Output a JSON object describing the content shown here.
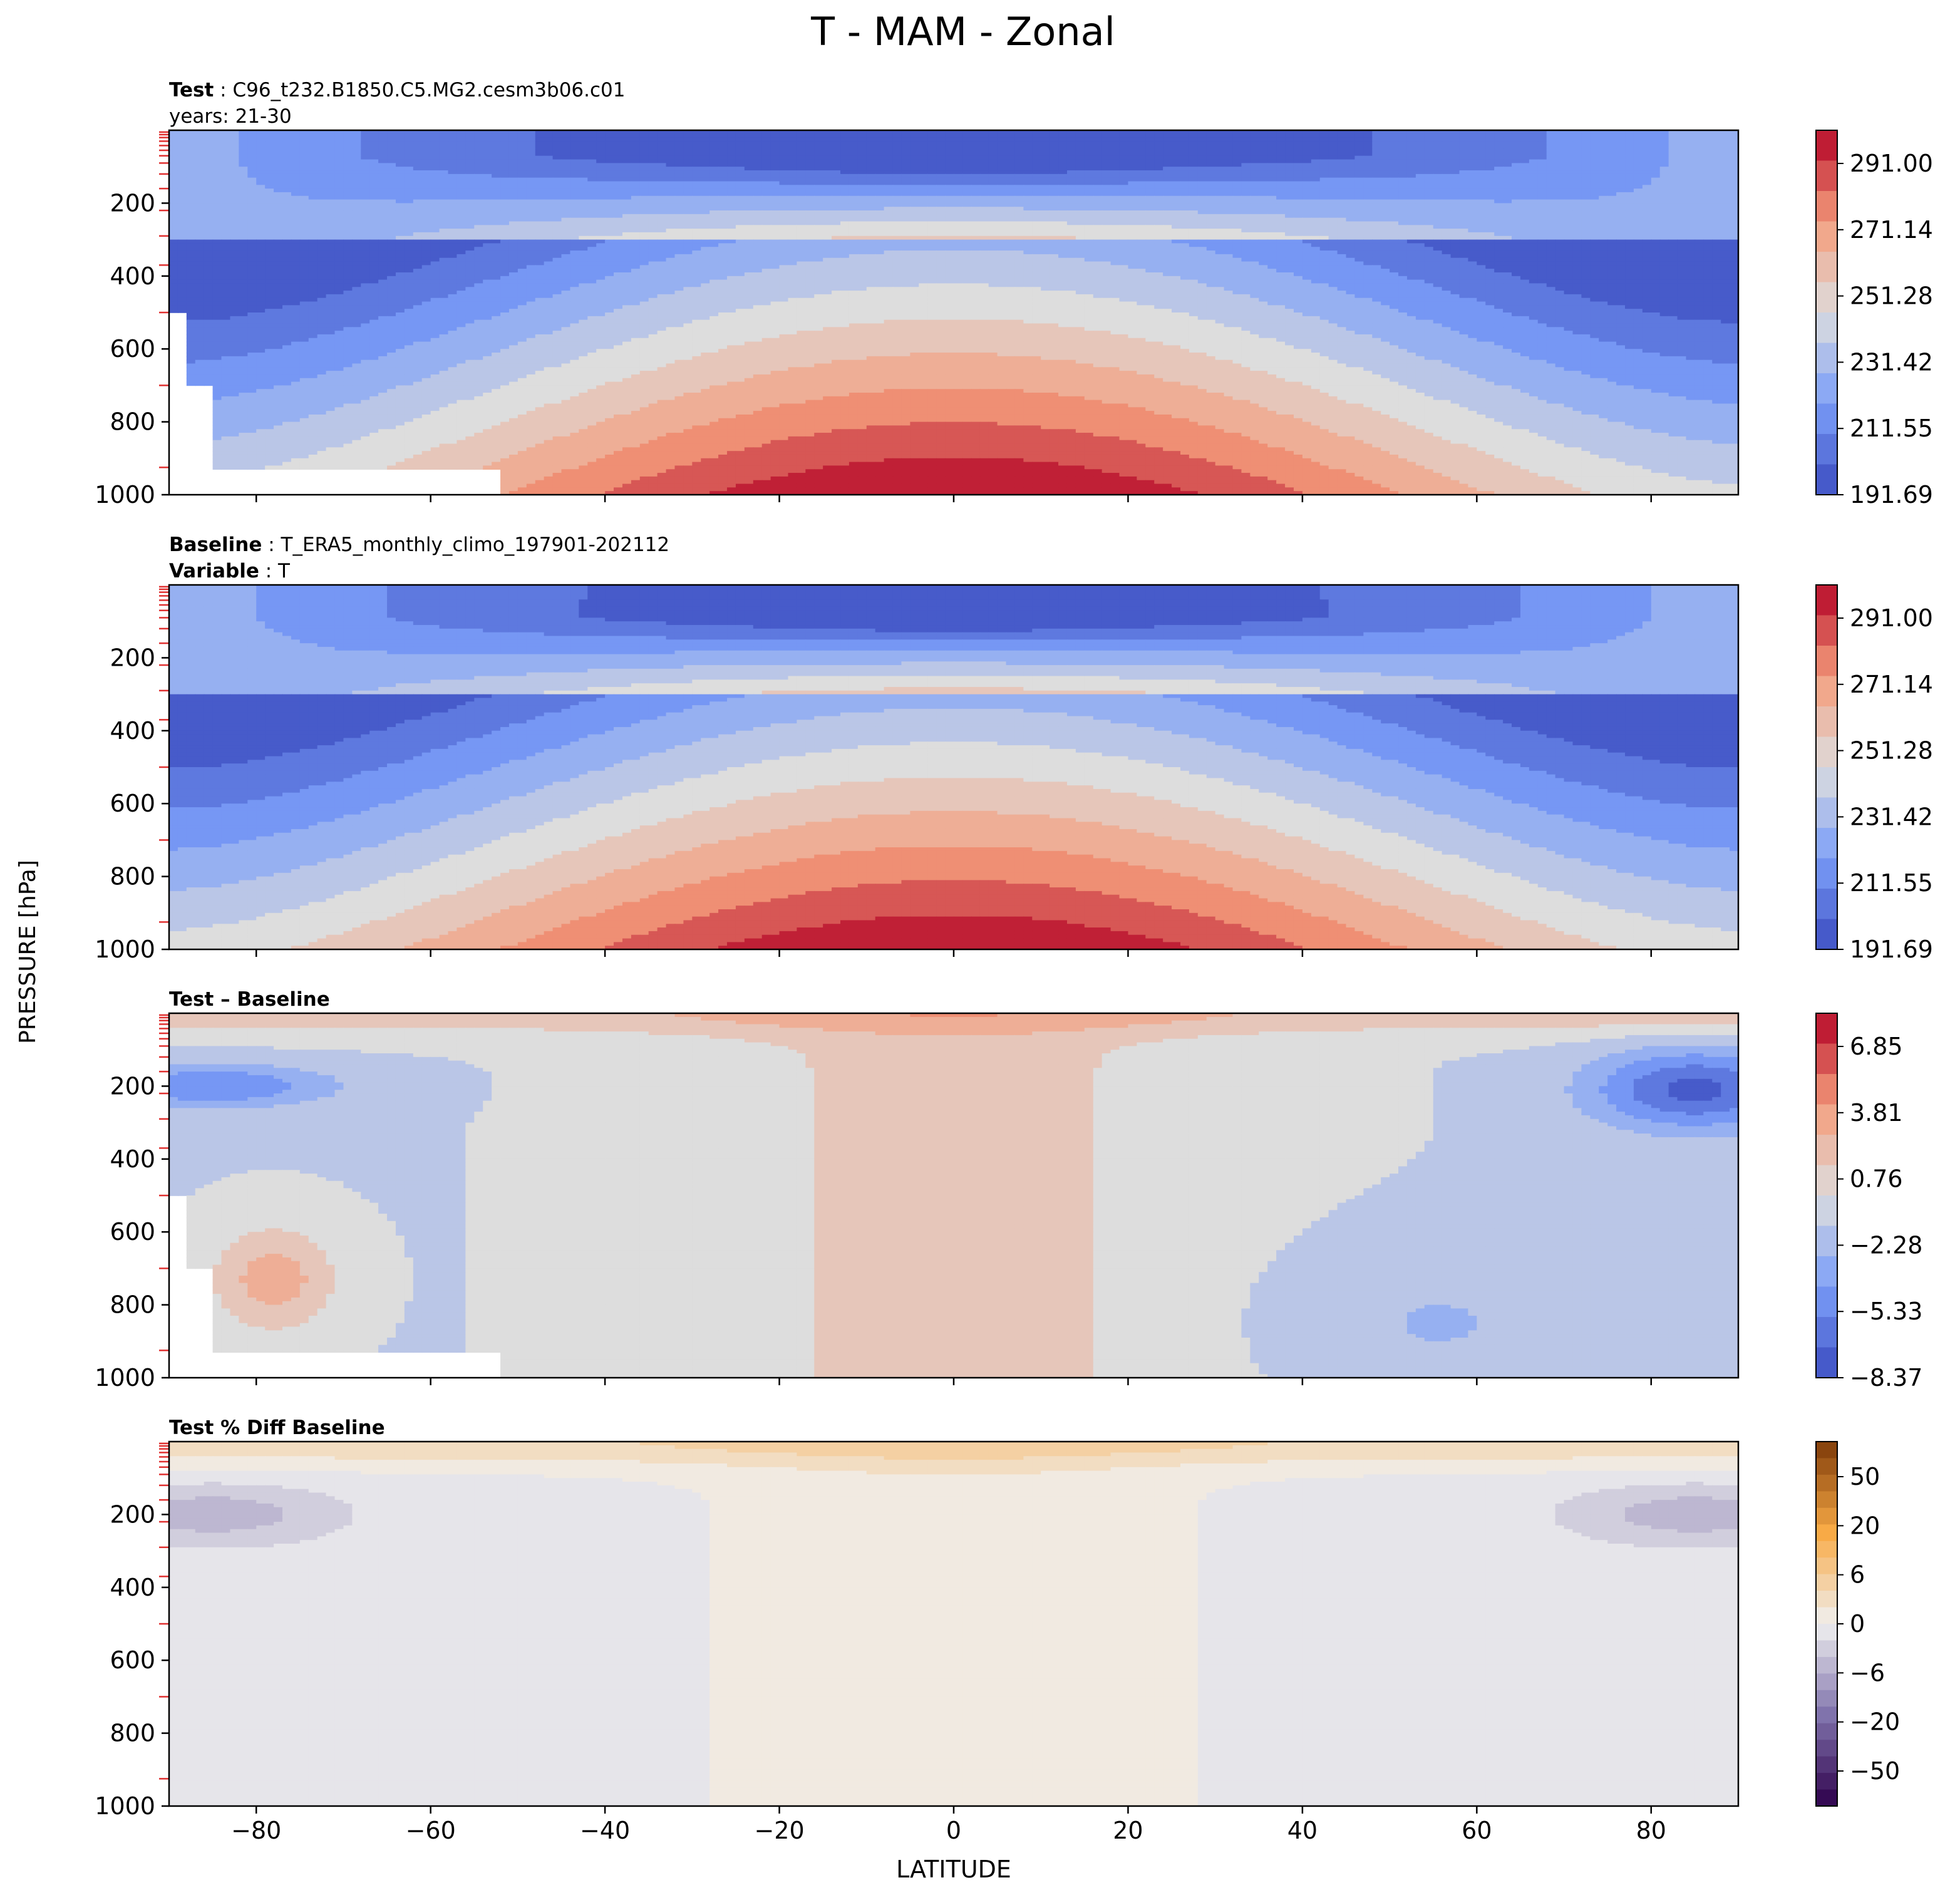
{
  "figure": {
    "title": "T - MAM - Zonal",
    "ylabel": "PRESSURE [hPa]",
    "xlabel": "LATITUDE"
  },
  "chart_data": [
    {
      "type": "heatmap",
      "panel": "test",
      "header_lines": [
        {
          "bold": "Test",
          "text": ": C96_t232.B1850.C5.MG2.cesm3b06.c01"
        },
        {
          "bold": "",
          "text": "years: 21-30"
        }
      ],
      "x": {
        "range": [
          -90,
          90
        ],
        "ticks": [
          -80,
          -60,
          -40,
          -20,
          0,
          20,
          40,
          60,
          80
        ],
        "tick_labels_shown": false
      },
      "y": {
        "range": [
          0,
          1000
        ],
        "inverted": true,
        "ticks": [
          200,
          400,
          600,
          800,
          1000
        ]
      },
      "colormap": "coolwarm",
      "colorbar": {
        "ticks": [
          "291.00",
          "271.14",
          "251.28",
          "231.42",
          "211.55",
          "191.69"
        ],
        "range": [
          191.69,
          301.0
        ]
      },
      "profile": {
        "kind": "temperature",
        "tMin": 194,
        "tMax": 302,
        "tropo": 70
      },
      "has_missing_surface": true
    },
    {
      "type": "heatmap",
      "panel": "baseline",
      "header_lines": [
        {
          "bold": "Baseline",
          "text": ": T_ERA5_monthly_climo_197901-202112"
        },
        {
          "bold": "Variable",
          "text": ": T"
        }
      ],
      "x": {
        "range": [
          -90,
          90
        ],
        "ticks": [
          -80,
          -60,
          -40,
          -20,
          0,
          20,
          40,
          60,
          80
        ],
        "tick_labels_shown": false
      },
      "y": {
        "range": [
          0,
          1000
        ],
        "inverted": true,
        "ticks": [
          200,
          400,
          600,
          800,
          1000
        ]
      },
      "colormap": "coolwarm",
      "colorbar": {
        "ticks": [
          "291.00",
          "271.14",
          "251.28",
          "231.42",
          "211.55",
          "191.69"
        ],
        "range": [
          191.69,
          301.0
        ]
      },
      "profile": {
        "kind": "temperature",
        "tMin": 196,
        "tMax": 301,
        "tropo": 90
      },
      "has_missing_surface": false
    },
    {
      "type": "heatmap",
      "panel": "difference",
      "header_lines": [
        {
          "bold": "Test – Baseline",
          "text": ""
        }
      ],
      "x": {
        "range": [
          -90,
          90
        ],
        "ticks": [
          -80,
          -60,
          -40,
          -20,
          0,
          20,
          40,
          60,
          80
        ],
        "tick_labels_shown": false
      },
      "y": {
        "range": [
          0,
          1000
        ],
        "inverted": true,
        "ticks": [
          200,
          400,
          600,
          800,
          1000
        ]
      },
      "colormap": "coolwarm",
      "colorbar": {
        "ticks": [
          "6.85",
          "3.81",
          "0.76",
          "−2.28",
          "−5.33",
          "−8.37"
        ],
        "range": [
          -8.37,
          8.37
        ]
      },
      "profile": {
        "kind": "difference",
        "min": -8.37,
        "max": 8.37
      },
      "has_missing_surface": true
    },
    {
      "type": "heatmap",
      "panel": "percent_difference",
      "header_lines": [
        {
          "bold": "Test % Diff Baseline",
          "text": ""
        }
      ],
      "x": {
        "range": [
          -90,
          90
        ],
        "ticks": [
          -80,
          -60,
          -40,
          -20,
          0,
          20,
          40,
          60,
          80
        ],
        "tick_labels_shown": true
      },
      "y": {
        "range": [
          0,
          1000
        ],
        "inverted": true,
        "ticks": [
          200,
          400,
          600,
          800,
          1000
        ]
      },
      "colormap": "PuOr_r",
      "colorbar": {
        "ticks": [
          "50",
          "20",
          "6",
          "0",
          "−6",
          "−20",
          "−50"
        ],
        "range": [
          -100,
          100
        ]
      },
      "profile": {
        "kind": "percent",
        "min": -100,
        "max": 100
      },
      "has_missing_surface": false
    }
  ]
}
